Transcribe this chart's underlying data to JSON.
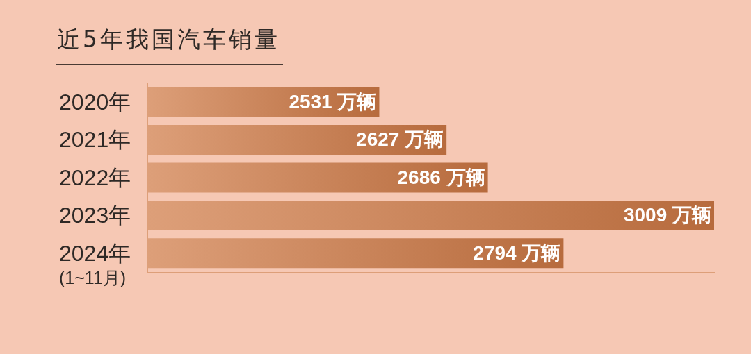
{
  "chart_data": {
    "type": "bar",
    "orientation": "horizontal",
    "title": "近5年我国汽车销量",
    "categories": [
      "2020年",
      "2021年",
      "2022年",
      "2023年",
      "2024年\n(1~11月)"
    ],
    "values": [
      2531,
      2627,
      2686,
      3009,
      2794
    ],
    "value_labels": [
      "2531 万辆",
      "2627 万辆",
      "2686 万辆",
      "3009 万辆",
      "2794 万辆"
    ],
    "color": "#d07a45",
    "xlim": [
      2200,
      3009
    ],
    "tick_labels": "y"
  }
}
